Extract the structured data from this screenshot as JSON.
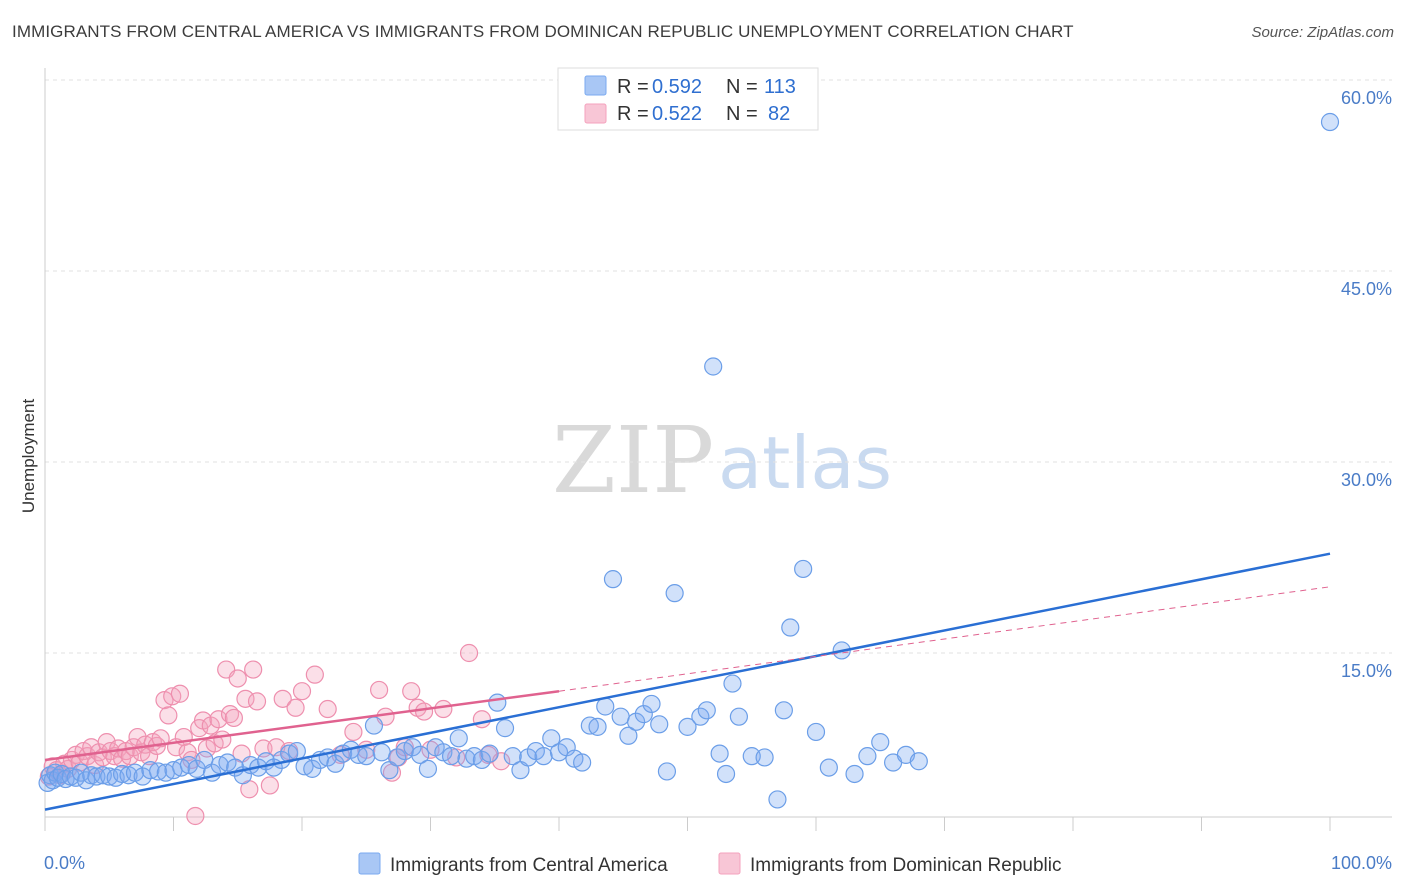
{
  "header": {
    "title": "IMMIGRANTS FROM CENTRAL AMERICA VS IMMIGRANTS FROM DOMINICAN REPUBLIC UNEMPLOYMENT CORRELATION CHART",
    "source": "Source: ZipAtlas.com"
  },
  "watermark": {
    "zip": "ZIP",
    "atlas": "atlas"
  },
  "legend": {
    "rows": [
      {
        "r_label": "R =",
        "r_value": "0.592",
        "n_label": "N =",
        "n_value": "113"
      },
      {
        "r_label": "R =",
        "r_value": "0.522",
        "n_label": "N =",
        "n_value": "82"
      }
    ]
  },
  "chart_data": {
    "type": "scatter",
    "title": "IMMIGRANTS FROM CENTRAL AMERICA VS IMMIGRANTS FROM DOMINICAN REPUBLIC UNEMPLOYMENT CORRELATION CHART",
    "xlabel": "",
    "ylabel": "Unemployment",
    "xlim": [
      0,
      100
    ],
    "ylim": [
      0,
      63
    ],
    "x_tick_labels": [
      "0.0%",
      "100.0%"
    ],
    "y_ticks": [
      15,
      30,
      45,
      60
    ],
    "y_tick_labels": [
      "15.0%",
      "30.0%",
      "45.0%",
      "60.0%"
    ],
    "grid": true,
    "legend_position": "top-center",
    "series": [
      {
        "name": "Immigrants from Central America",
        "color": "#7aaaf0",
        "line_color": "#2a6fd4",
        "R": 0.592,
        "N": 113,
        "trend": {
          "x": [
            0,
            100
          ],
          "y": [
            2.7,
            22.8
          ]
        },
        "points": [
          [
            0.2,
            4.8
          ],
          [
            0.4,
            5.4
          ],
          [
            0.6,
            5.0
          ],
          [
            0.8,
            5.6
          ],
          [
            1.0,
            5.2
          ],
          [
            1.3,
            5.5
          ],
          [
            1.6,
            5.1
          ],
          [
            2.0,
            5.3
          ],
          [
            2.4,
            5.2
          ],
          [
            2.8,
            5.6
          ],
          [
            3.2,
            5.0
          ],
          [
            3.6,
            5.4
          ],
          [
            4.0,
            5.3
          ],
          [
            4.5,
            5.4
          ],
          [
            5.0,
            5.3
          ],
          [
            5.5,
            5.2
          ],
          [
            6.0,
            5.5
          ],
          [
            6.5,
            5.4
          ],
          [
            7.0,
            5.6
          ],
          [
            7.6,
            5.3
          ],
          [
            8.2,
            5.8
          ],
          [
            8.8,
            5.7
          ],
          [
            9.4,
            5.6
          ],
          [
            10.0,
            5.8
          ],
          [
            10.6,
            6.0
          ],
          [
            11.2,
            6.2
          ],
          [
            11.8,
            5.9
          ],
          [
            12.4,
            6.6
          ],
          [
            13.0,
            5.6
          ],
          [
            13.6,
            6.2
          ],
          [
            14.2,
            6.4
          ],
          [
            14.8,
            6.0
          ],
          [
            15.4,
            5.4
          ],
          [
            16.0,
            6.2
          ],
          [
            16.6,
            6.0
          ],
          [
            17.2,
            6.5
          ],
          [
            17.8,
            6.0
          ],
          [
            18.4,
            6.6
          ],
          [
            19.0,
            7.1
          ],
          [
            19.6,
            7.3
          ],
          [
            20.2,
            6.1
          ],
          [
            20.8,
            5.9
          ],
          [
            21.4,
            6.6
          ],
          [
            22.0,
            6.8
          ],
          [
            22.6,
            6.3
          ],
          [
            23.2,
            7.1
          ],
          [
            23.8,
            7.4
          ],
          [
            24.4,
            7.0
          ],
          [
            25.0,
            6.9
          ],
          [
            25.6,
            9.3
          ],
          [
            26.2,
            7.2
          ],
          [
            26.8,
            5.8
          ],
          [
            27.4,
            6.8
          ],
          [
            28.0,
            7.3
          ],
          [
            28.6,
            7.6
          ],
          [
            29.2,
            7.0
          ],
          [
            29.8,
            5.9
          ],
          [
            30.4,
            7.6
          ],
          [
            31.0,
            7.2
          ],
          [
            31.6,
            6.9
          ],
          [
            32.2,
            8.3
          ],
          [
            32.8,
            6.7
          ],
          [
            33.4,
            6.9
          ],
          [
            34.0,
            6.6
          ],
          [
            34.6,
            7.1
          ],
          [
            35.2,
            11.1
          ],
          [
            35.8,
            9.1
          ],
          [
            36.4,
            6.9
          ],
          [
            37.0,
            5.8
          ],
          [
            37.6,
            6.8
          ],
          [
            38.2,
            7.3
          ],
          [
            38.8,
            6.9
          ],
          [
            39.4,
            8.3
          ],
          [
            40.0,
            7.2
          ],
          [
            40.6,
            7.6
          ],
          [
            41.2,
            6.7
          ],
          [
            41.8,
            6.4
          ],
          [
            42.4,
            9.3
          ],
          [
            43.0,
            9.2
          ],
          [
            43.6,
            10.8
          ],
          [
            44.2,
            20.8
          ],
          [
            44.8,
            10.0
          ],
          [
            45.4,
            8.5
          ],
          [
            46.0,
            9.6
          ],
          [
            46.6,
            10.2
          ],
          [
            47.2,
            11.0
          ],
          [
            47.8,
            9.4
          ],
          [
            48.4,
            5.7
          ],
          [
            49.0,
            19.7
          ],
          [
            50.0,
            9.2
          ],
          [
            51.0,
            10.0
          ],
          [
            51.5,
            10.5
          ],
          [
            52.0,
            37.5
          ],
          [
            52.5,
            7.1
          ],
          [
            53.0,
            5.5
          ],
          [
            53.5,
            12.6
          ],
          [
            54.0,
            10.0
          ],
          [
            55.0,
            6.9
          ],
          [
            56.0,
            6.8
          ],
          [
            57.0,
            3.5
          ],
          [
            57.5,
            10.5
          ],
          [
            58.0,
            17.0
          ],
          [
            59.0,
            21.6
          ],
          [
            60.0,
            8.8
          ],
          [
            61.0,
            6.0
          ],
          [
            62.0,
            15.2
          ],
          [
            63.0,
            5.5
          ],
          [
            64.0,
            6.9
          ],
          [
            65.0,
            8.0
          ],
          [
            66.0,
            6.4
          ],
          [
            67.0,
            7.0
          ],
          [
            68.0,
            6.5
          ],
          [
            100.0,
            56.7
          ]
        ]
      },
      {
        "name": "Immigrants from Dominican Republic",
        "color": "#f4a2bd",
        "line_color": "#e0628f",
        "R": 0.522,
        "N": 82,
        "trend": {
          "x": [
            0,
            40
          ],
          "y": [
            6.6,
            12.0
          ]
        },
        "trend_dashed": {
          "x": [
            40,
            100
          ],
          "y": [
            12.0,
            20.2
          ]
        },
        "points": [
          [
            0.3,
            5.3
          ],
          [
            0.6,
            6.1
          ],
          [
            0.9,
            5.8
          ],
          [
            1.2,
            5.4
          ],
          [
            1.5,
            6.3
          ],
          [
            1.8,
            5.9
          ],
          [
            2.1,
            6.6
          ],
          [
            2.4,
            7.0
          ],
          [
            2.7,
            6.4
          ],
          [
            3.0,
            7.3
          ],
          [
            3.3,
            6.9
          ],
          [
            3.6,
            7.6
          ],
          [
            3.9,
            6.2
          ],
          [
            4.2,
            7.2
          ],
          [
            4.5,
            6.8
          ],
          [
            4.8,
            8.0
          ],
          [
            5.1,
            7.3
          ],
          [
            5.4,
            6.9
          ],
          [
            5.7,
            7.5
          ],
          [
            6.0,
            6.7
          ],
          [
            6.3,
            7.3
          ],
          [
            6.6,
            6.9
          ],
          [
            6.9,
            7.6
          ],
          [
            7.2,
            8.4
          ],
          [
            7.5,
            7.2
          ],
          [
            7.8,
            7.8
          ],
          [
            8.1,
            6.9
          ],
          [
            8.4,
            8.0
          ],
          [
            8.7,
            7.7
          ],
          [
            9.0,
            8.3
          ],
          [
            9.3,
            11.3
          ],
          [
            9.6,
            10.1
          ],
          [
            9.9,
            11.6
          ],
          [
            10.2,
            7.6
          ],
          [
            10.5,
            11.8
          ],
          [
            10.8,
            8.4
          ],
          [
            11.1,
            7.2
          ],
          [
            11.4,
            6.6
          ],
          [
            11.7,
            2.2
          ],
          [
            12.0,
            9.1
          ],
          [
            12.3,
            9.7
          ],
          [
            12.6,
            7.5
          ],
          [
            12.9,
            9.3
          ],
          [
            13.2,
            7.9
          ],
          [
            13.5,
            9.8
          ],
          [
            13.8,
            8.2
          ],
          [
            14.1,
            13.7
          ],
          [
            14.4,
            10.2
          ],
          [
            14.7,
            9.9
          ],
          [
            15.0,
            13.0
          ],
          [
            15.3,
            7.1
          ],
          [
            15.6,
            11.4
          ],
          [
            15.9,
            4.3
          ],
          [
            16.2,
            13.7
          ],
          [
            16.5,
            11.2
          ],
          [
            17.0,
            7.5
          ],
          [
            17.5,
            4.6
          ],
          [
            18.0,
            7.6
          ],
          [
            18.5,
            11.4
          ],
          [
            19.0,
            7.3
          ],
          [
            19.5,
            10.7
          ],
          [
            20.0,
            12.0
          ],
          [
            21.0,
            13.3
          ],
          [
            22.0,
            10.6
          ],
          [
            23.0,
            7.0
          ],
          [
            24.0,
            8.8
          ],
          [
            25.0,
            7.4
          ],
          [
            26.0,
            12.1
          ],
          [
            26.5,
            10.0
          ],
          [
            27.0,
            5.6
          ],
          [
            27.5,
            6.8
          ],
          [
            28.0,
            7.6
          ],
          [
            28.5,
            12.0
          ],
          [
            29.0,
            10.7
          ],
          [
            29.5,
            10.4
          ],
          [
            30.0,
            7.4
          ],
          [
            31.0,
            10.6
          ],
          [
            32.0,
            6.8
          ],
          [
            33.0,
            15.0
          ],
          [
            34.0,
            9.8
          ],
          [
            34.5,
            7.0
          ],
          [
            35.5,
            6.5
          ]
        ]
      }
    ]
  }
}
